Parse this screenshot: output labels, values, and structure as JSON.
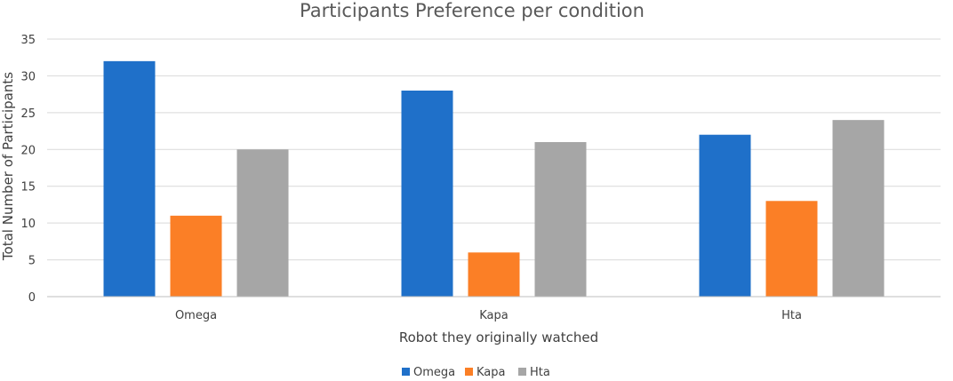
{
  "chart_data": {
    "type": "bar",
    "title": "Participants Preference per condition",
    "xlabel": "Robot they originally watched",
    "ylabel": "Total Number of Participants",
    "categories": [
      "Omega",
      "Kapa",
      "Hta"
    ],
    "series": [
      {
        "name": "Omega",
        "values": [
          32,
          28,
          22
        ],
        "color": "#1f70c9"
      },
      {
        "name": "Kapa",
        "values": [
          11,
          6,
          13
        ],
        "color": "#fb7f26"
      },
      {
        "name": "Hta",
        "values": [
          20,
          21,
          24
        ],
        "color": "#a6a6a6"
      }
    ],
    "ylim": [
      0,
      35
    ],
    "yticks": [
      0,
      5,
      10,
      15,
      20,
      25,
      30,
      35
    ],
    "grid": true,
    "legend": "bottom"
  }
}
